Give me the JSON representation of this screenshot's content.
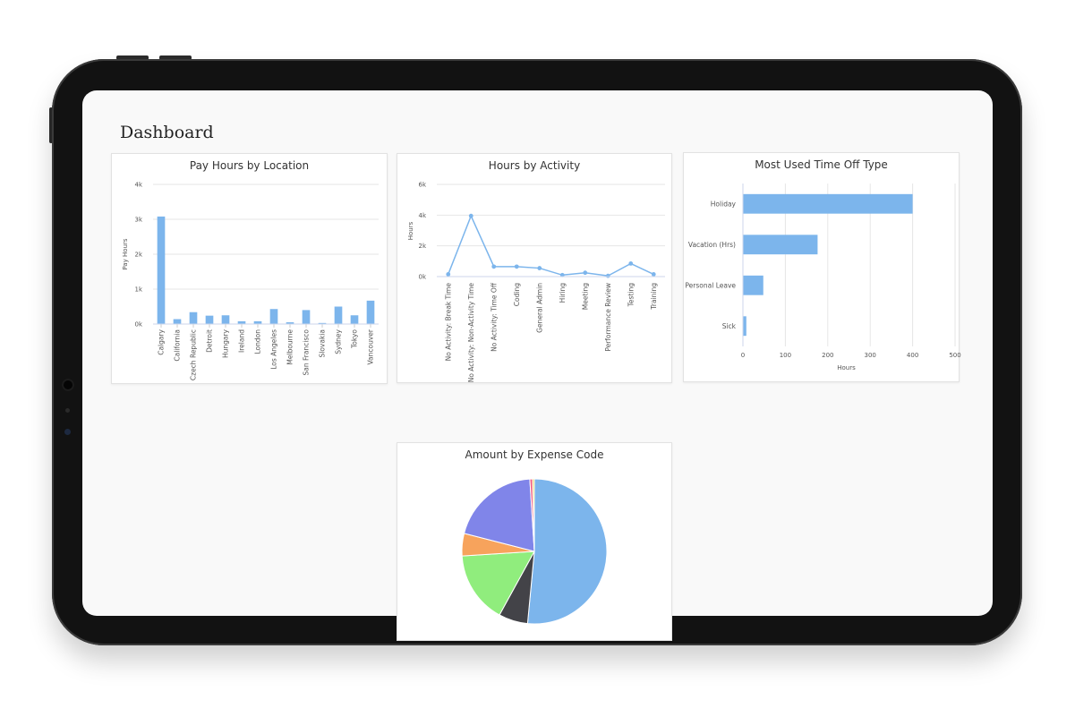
{
  "page": {
    "title": "Dashboard"
  },
  "colors": {
    "primary": "#7cb5ec",
    "grid": "#e6e6e6"
  },
  "chart_data": [
    {
      "type": "bar",
      "title": "Pay Hours by Location",
      "ylabel": "Pay Hours",
      "xlabel": "",
      "ylim": [
        0,
        4000
      ],
      "yticks": [
        0,
        1000,
        2000,
        3000,
        4000
      ],
      "ytick_labels": [
        "0k",
        "1k",
        "2k",
        "3k",
        "4k"
      ],
      "categories": [
        "Calgary",
        "California",
        "Czech Republic",
        "Detroit",
        "Hungary",
        "Ireland",
        "London",
        "Los Angeles",
        "Melbourne",
        "San Francisco",
        "Slovakia",
        "Sydney",
        "Tokyo",
        "Vancouver"
      ],
      "values": [
        3080,
        140,
        340,
        240,
        250,
        80,
        80,
        430,
        50,
        400,
        30,
        500,
        250,
        670
      ]
    },
    {
      "type": "line",
      "title": "Hours by Activity",
      "ylabel": "Hours",
      "xlabel": "",
      "ylim": [
        0,
        6000
      ],
      "yticks": [
        0,
        2000,
        4000,
        6000
      ],
      "ytick_labels": [
        "0k",
        "2k",
        "4k",
        "6k"
      ],
      "categories": [
        "No Activity: Break Time",
        "No Activity: Non-Activity Time",
        "No Activity: Time Off",
        "Coding",
        "General Admin",
        "Hiring",
        "Meeting",
        "Performance Review",
        "Testing",
        "Training"
      ],
      "values": [
        150,
        3950,
        650,
        650,
        550,
        100,
        250,
        50,
        850,
        150
      ]
    },
    {
      "type": "bar",
      "orientation": "horizontal",
      "title": "Most Used Time Off Type",
      "xlabel": "Hours",
      "ylabel": "",
      "xlim": [
        0,
        500
      ],
      "xticks": [
        0,
        100,
        200,
        300,
        400,
        500
      ],
      "categories": [
        "Holiday",
        "Vacation (Hrs)",
        "Personal Leave",
        "Sick"
      ],
      "values": [
        400,
        176,
        48,
        8
      ]
    },
    {
      "type": "pie",
      "title": "Amount by Expense Code",
      "slices": [
        {
          "value": 51.5,
          "color": "#7cb5ec"
        },
        {
          "value": 6.5,
          "color": "#434348"
        },
        {
          "value": 16.0,
          "color": "#90ed7d"
        },
        {
          "value": 5.0,
          "color": "#f7a35c"
        },
        {
          "value": 20.0,
          "color": "#8085e9"
        },
        {
          "value": 0.6,
          "color": "#f15c80"
        },
        {
          "value": 0.4,
          "color": "#e4d354"
        }
      ]
    }
  ]
}
